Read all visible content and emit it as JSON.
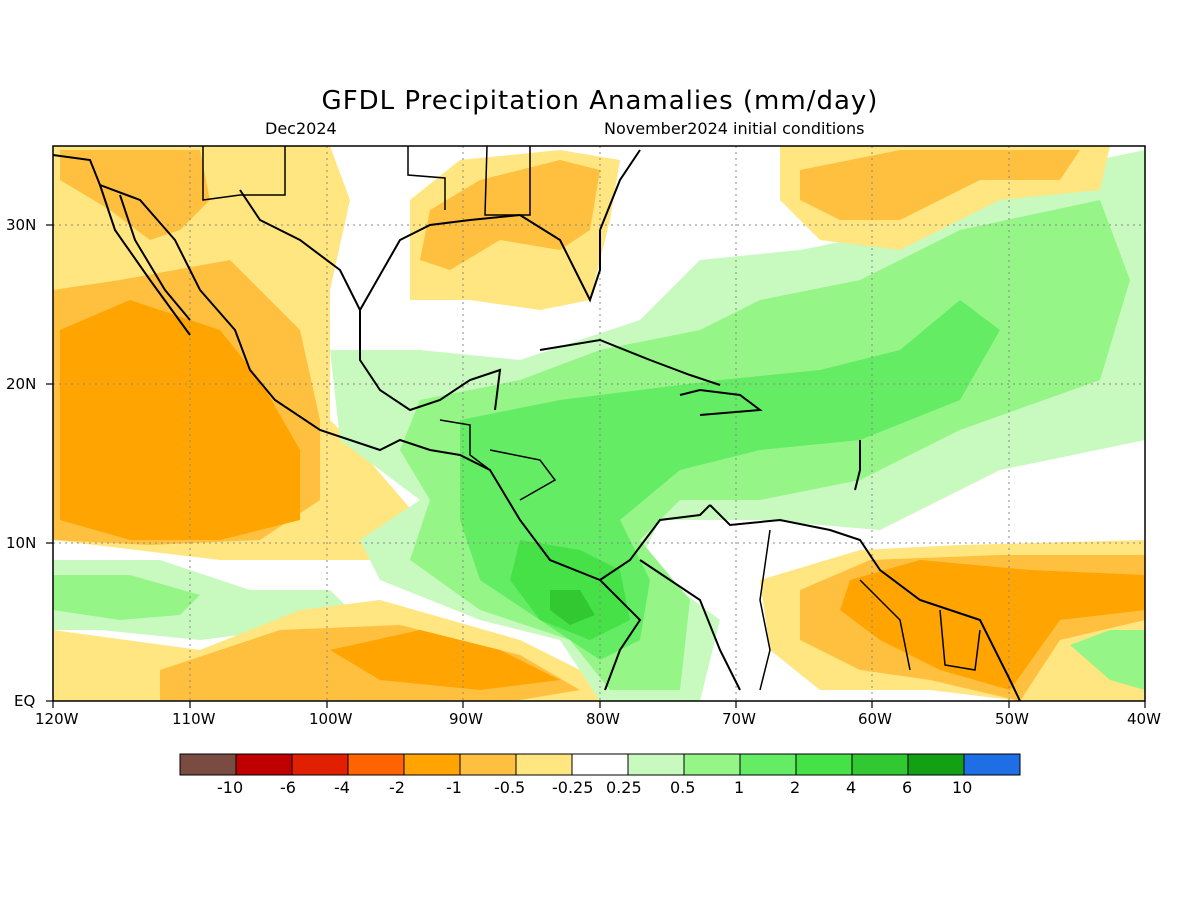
{
  "title": "GFDL Precipitation Anamalies (mm/day)",
  "subtitle_left": "Dec2024",
  "subtitle_right": "November2024 initial conditions",
  "lon_labels": [
    "120W",
    "110W",
    "100W",
    "90W",
    "80W",
    "70W",
    "60W",
    "50W",
    "40W"
  ],
  "lat_labels": [
    "30N",
    "20N",
    "10N",
    "EQ"
  ],
  "colorbar": {
    "colors": [
      "#7a4b41",
      "#c00000",
      "#e02000",
      "#ff6400",
      "#ffa400",
      "#ffc040",
      "#ffe680",
      "#ffffff",
      "#c8fac0",
      "#96f587",
      "#64ec64",
      "#46e146",
      "#32c832",
      "#14a014",
      "#1e6ee6"
    ],
    "labels": [
      "-10",
      "-6",
      "-4",
      "-2",
      "-1",
      "-0.5",
      "-0.25",
      "0.25",
      "0.5",
      "1",
      "2",
      "4",
      "6",
      "10"
    ]
  }
}
